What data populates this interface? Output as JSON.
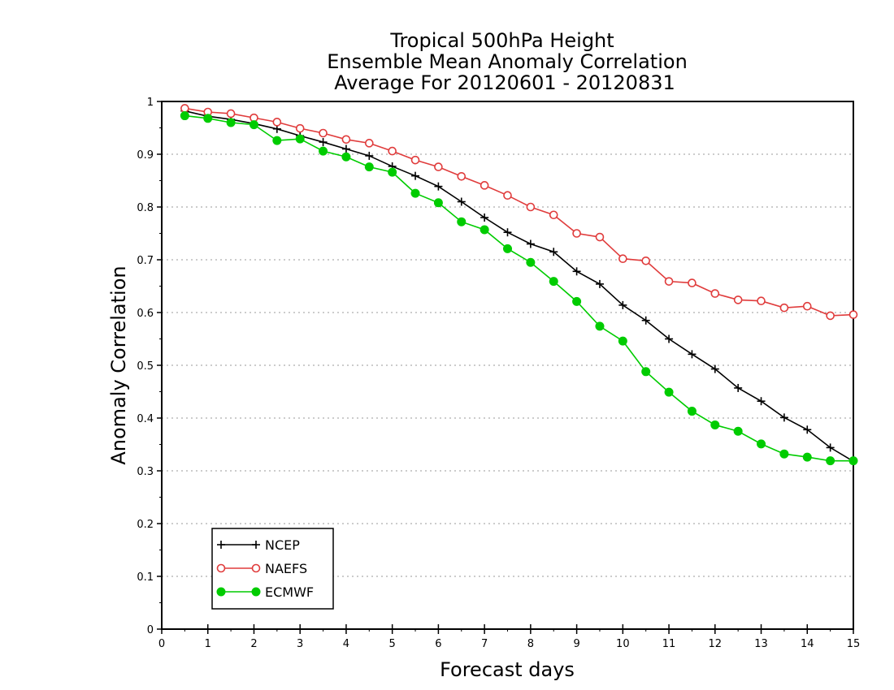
{
  "chart_data": {
    "type": "line",
    "title_lines": [
      "Tropical 500hPa Height",
      "Ensemble Mean Anomaly Correlation",
      "Average For 20120601 - 20120831"
    ],
    "xlabel": "Forecast days",
    "ylabel": "Anomaly Correlation",
    "xlim": [
      0,
      15
    ],
    "ylim": [
      0,
      1
    ],
    "xticks": [
      "0",
      "1",
      "2",
      "3",
      "4",
      "5",
      "6",
      "7",
      "8",
      "9",
      "10",
      "11",
      "12",
      "13",
      "14",
      "15"
    ],
    "yticks": [
      "0",
      "0.1",
      "0.2",
      "0.3",
      "0.4",
      "0.5",
      "0.6",
      "0.7",
      "0.8",
      "0.9",
      "1"
    ],
    "grid": "horizontal dotted",
    "legend_position": "bottom-left",
    "x": [
      0.5,
      1,
      1.5,
      2,
      2.5,
      3,
      3.5,
      4,
      4.5,
      5,
      5.5,
      6,
      6.5,
      7,
      7.5,
      8,
      8.5,
      9,
      9.5,
      10,
      10.5,
      11,
      11.5,
      12,
      12.5,
      13,
      13.5,
      14,
      14.5,
      15
    ],
    "series": [
      {
        "name": "NCEP",
        "color": "#000000",
        "marker": "plus",
        "values": [
          0.982,
          0.972,
          0.966,
          0.958,
          0.948,
          0.935,
          0.923,
          0.91,
          0.897,
          0.877,
          0.859,
          0.839,
          0.81,
          0.78,
          0.752,
          0.73,
          0.715,
          0.678,
          0.654,
          0.614,
          0.585,
          0.55,
          0.521,
          0.493,
          0.457,
          0.432,
          0.401,
          0.378,
          0.344,
          0.318
        ]
      },
      {
        "name": "NAEFS",
        "color": "#e03c3c",
        "marker": "open-circle",
        "values": [
          0.987,
          0.98,
          0.977,
          0.969,
          0.961,
          0.949,
          0.94,
          0.928,
          0.921,
          0.906,
          0.889,
          0.876,
          0.858,
          0.841,
          0.822,
          0.8,
          0.785,
          0.75,
          0.743,
          0.702,
          0.698,
          0.659,
          0.656,
          0.636,
          0.624,
          0.622,
          0.609,
          0.612,
          0.594,
          0.596
        ]
      },
      {
        "name": "ECMWF",
        "color": "#00cc00",
        "marker": "filled-circle",
        "values": [
          0.973,
          0.968,
          0.96,
          0.956,
          0.926,
          0.929,
          0.906,
          0.895,
          0.876,
          0.866,
          0.826,
          0.808,
          0.772,
          0.757,
          0.721,
          0.695,
          0.659,
          0.621,
          0.574,
          0.546,
          0.488,
          0.449,
          0.413,
          0.387,
          0.375,
          0.351,
          0.332,
          0.326,
          0.319,
          0.319
        ]
      }
    ]
  }
}
